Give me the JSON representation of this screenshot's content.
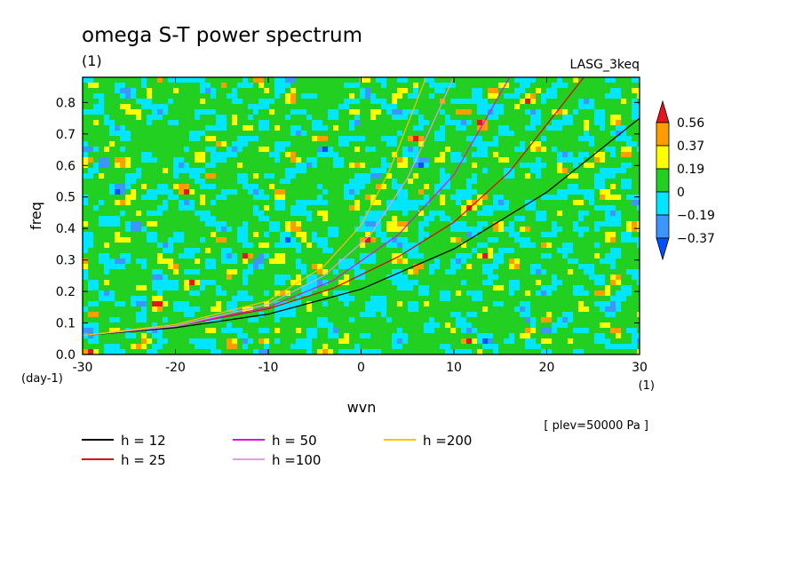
{
  "chart_data": {
    "type": "heatmap",
    "title": "omega S-T power spectrum",
    "subtitle": "(1)",
    "source_label": "LASG_3keq",
    "xlabel": "wvn",
    "ylabel": "freq",
    "x_unit": "(1)",
    "y_unit": "(day-1)",
    "xlim": [
      -30,
      30
    ],
    "ylim": [
      0.0,
      0.88
    ],
    "x_ticks": [
      -30,
      -20,
      -10,
      0,
      10,
      20,
      30
    ],
    "x_tick_labels": [
      "-30",
      "-20",
      "-10",
      "0",
      "10",
      "20",
      "30"
    ],
    "y_ticks": [
      0.0,
      0.1,
      0.2,
      0.3,
      0.4,
      0.5,
      0.6,
      0.7,
      0.8
    ],
    "y_tick_labels": [
      "0.0",
      "0.1",
      "0.2",
      "0.3",
      "0.4",
      "0.5",
      "0.6",
      "0.7",
      "0.8"
    ],
    "plev_note": "[ plev=50000 Pa ]",
    "colorbar": {
      "levels": [
        "0.56",
        "0.37",
        "0.19",
        "0",
        "-0.19",
        "-0.37"
      ],
      "colors": [
        "#e8141e",
        "#ff9c00",
        "#ffff00",
        "#22d022",
        "#00e6ff",
        "#3c96ff",
        "#0050ff"
      ]
    },
    "field_seed": 7,
    "dispersion_curves": [
      {
        "name": "h = 12",
        "color": "#000000",
        "points": [
          [
            -30,
            0.06
          ],
          [
            -20,
            0.085
          ],
          [
            -10,
            0.128
          ],
          [
            0,
            0.207
          ],
          [
            10,
            0.335
          ],
          [
            20,
            0.515
          ],
          [
            30,
            0.75
          ]
        ]
      },
      {
        "name": "h = 25",
        "color": "#e00000",
        "points": [
          [
            -30,
            0.06
          ],
          [
            -20,
            0.09
          ],
          [
            -10,
            0.145
          ],
          [
            -3,
            0.21
          ],
          [
            4,
            0.31
          ],
          [
            10,
            0.42
          ],
          [
            16,
            0.58
          ],
          [
            24,
            0.88
          ]
        ]
      },
      {
        "name": "h = 50",
        "color": "#dd10dd",
        "points": [
          [
            -30,
            0.06
          ],
          [
            -20,
            0.09
          ],
          [
            -10,
            0.15
          ],
          [
            -3,
            0.235
          ],
          [
            4,
            0.38
          ],
          [
            10,
            0.57
          ],
          [
            16,
            0.88
          ]
        ]
      },
      {
        "name": "h =100",
        "color": "#dda0dd",
        "points": [
          [
            -30,
            0.06
          ],
          [
            -20,
            0.09
          ],
          [
            -10,
            0.16
          ],
          [
            -4,
            0.25
          ],
          [
            1,
            0.38
          ],
          [
            5,
            0.56
          ],
          [
            10,
            0.88
          ]
        ]
      },
      {
        "name": "h =200",
        "color": "#ffc000",
        "points": [
          [
            -30,
            0.06
          ],
          [
            -20,
            0.095
          ],
          [
            -10,
            0.17
          ],
          [
            -4,
            0.28
          ],
          [
            0,
            0.41
          ],
          [
            3,
            0.58
          ],
          [
            7,
            0.88
          ]
        ]
      }
    ]
  }
}
